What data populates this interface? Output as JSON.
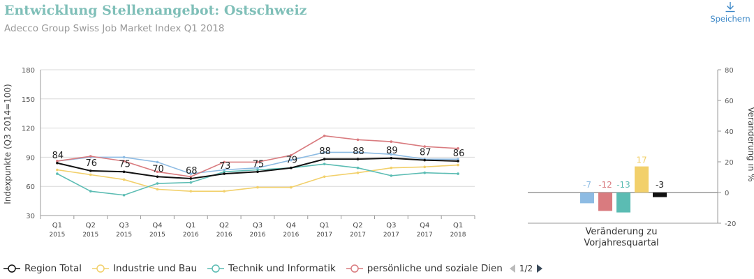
{
  "header": {
    "title": "Entwicklung Stellenangebot: Ostschweiz",
    "subtitle": "Adecco Group Swiss Job Market Index Q1 2018",
    "save_label": "Speichern",
    "save_icon": "download-icon"
  },
  "chart_data": [
    {
      "type": "line",
      "ylabel": "Indexpunkte (Q3 2014=100)",
      "ylim": [
        30,
        180
      ],
      "yticks": [
        30,
        60,
        90,
        120,
        150,
        180
      ],
      "grid": true,
      "categories": [
        [
          "Q1",
          "2015"
        ],
        [
          "Q2",
          "2015"
        ],
        [
          "Q3",
          "2015"
        ],
        [
          "Q4",
          "2015"
        ],
        [
          "Q1",
          "2016"
        ],
        [
          "Q2",
          "2016"
        ],
        [
          "Q3",
          "2016"
        ],
        [
          "Q4",
          "2016"
        ],
        [
          "Q1",
          "2017"
        ],
        [
          "Q2",
          "2017"
        ],
        [
          "Q3",
          "2017"
        ],
        [
          "Q4",
          "2017"
        ],
        [
          "Q1",
          "2018"
        ]
      ],
      "series": [
        {
          "name": "Region Total",
          "color": "#111111",
          "show_labels": true,
          "values": [
            84,
            76,
            75,
            70,
            68,
            73,
            75,
            79,
            88,
            88,
            89,
            87,
            86
          ]
        },
        {
          "name": "Industrie und Bau",
          "color": "#f2d06b",
          "show_labels": false,
          "values": [
            77,
            72,
            67,
            57,
            55,
            55,
            59,
            59,
            70,
            74,
            79,
            80,
            82
          ]
        },
        {
          "name": "Technik und Informatik",
          "color": "#5bbcb3",
          "show_labels": false,
          "values": [
            73,
            55,
            51,
            63,
            64,
            75,
            77,
            79,
            83,
            79,
            71,
            74,
            73
          ]
        },
        {
          "name": "persönliche und soziale Dienste",
          "color": "#d97b7f",
          "show_labels": false,
          "values": [
            86,
            91,
            86,
            75,
            70,
            85,
            85,
            92,
            112,
            108,
            106,
            101,
            99
          ]
        },
        {
          "name": "",
          "color": "#8dbbe3",
          "show_labels": false,
          "values": [
            86,
            90,
            90,
            85,
            73,
            77,
            79,
            87,
            95,
            95,
            93,
            88,
            88
          ]
        }
      ],
      "labels": [
        "84",
        "76",
        "75",
        "70",
        "68",
        "73",
        "75",
        "79",
        "88",
        "88",
        "89",
        "87",
        "86"
      ]
    },
    {
      "type": "bar",
      "xlabel": "Veränderung zu Vorjahresquartal",
      "ylabel": "Veränderung in %",
      "ylim": [
        -20,
        80
      ],
      "yticks": [
        -20,
        0,
        20,
        40,
        60,
        80
      ],
      "values": [
        -7,
        -12,
        -13,
        17,
        -3
      ],
      "labels": [
        "-7",
        "-12",
        "-13",
        "17",
        "-3"
      ],
      "colors": [
        "#8dbbe3",
        "#d97b7f",
        "#5bbcb3",
        "#f2d06b",
        "#111111"
      ]
    }
  ],
  "legend": {
    "items": [
      {
        "label": "Region Total",
        "color": "#111111"
      },
      {
        "label": "Industrie und Bau",
        "color": "#f2d06b"
      },
      {
        "label": "Technik und Informatik",
        "color": "#5bbcb3"
      },
      {
        "label": "persönliche und soziale Dien",
        "color": "#d97b7f"
      }
    ],
    "page": "1/2"
  }
}
